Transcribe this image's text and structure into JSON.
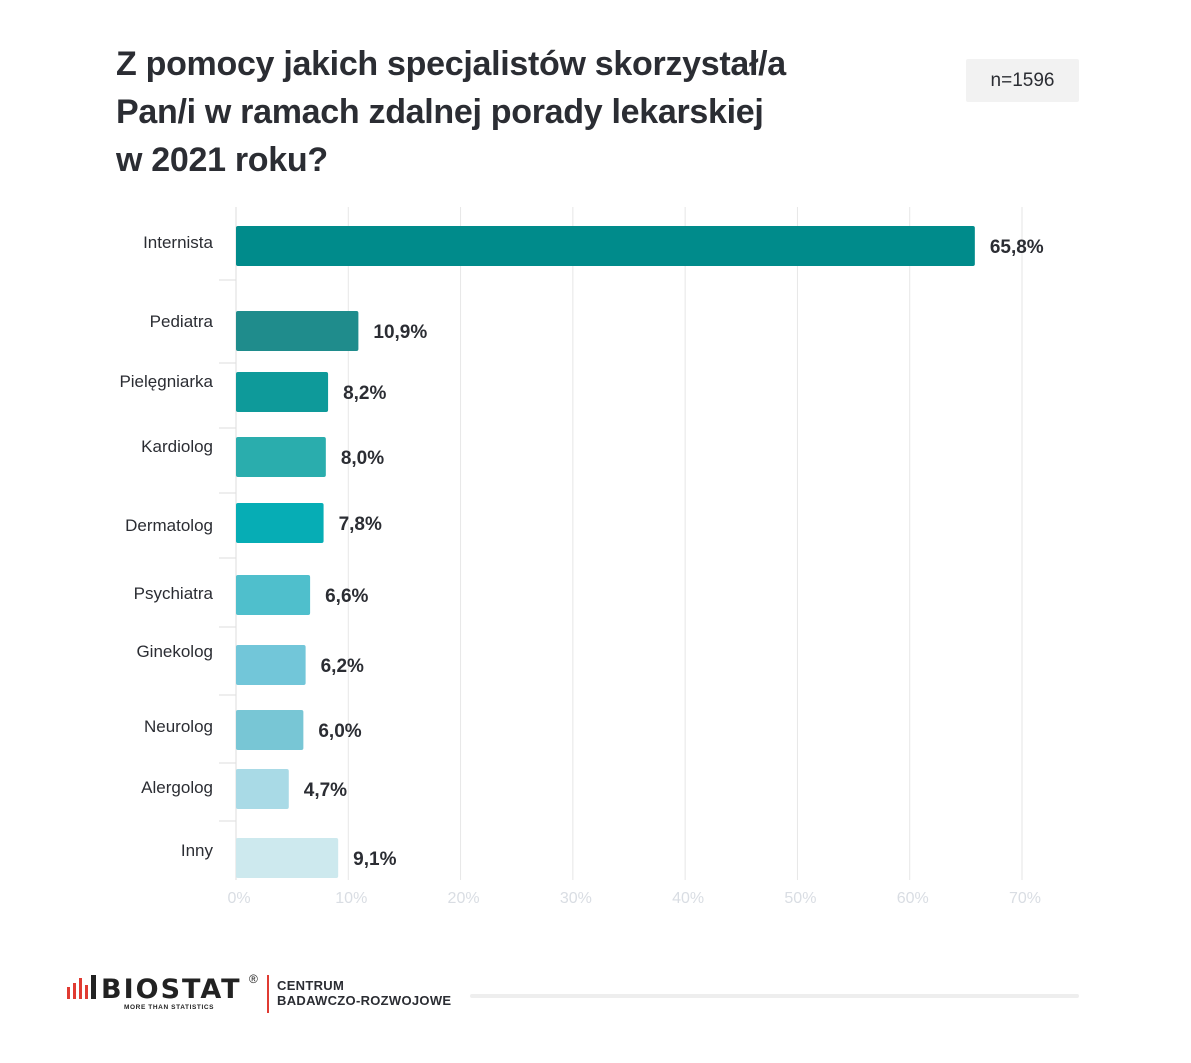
{
  "header": {
    "title_lines": [
      "Z pomocy jakich specjalistów skorzystał/a",
      "Pan/i w ramach zdalnej porady lekarskiej",
      "w 2021 roku?"
    ],
    "sample_size": "n=1596"
  },
  "chart_data": {
    "type": "bar",
    "orientation": "horizontal",
    "categories": [
      "Internista",
      "Pediatra",
      "Pielęgniarka",
      "Kardiolog",
      "Dermatolog",
      "Psychiatra",
      "Ginekolog",
      "Neurolog",
      "Alergolog",
      "Inny"
    ],
    "values": [
      65.8,
      10.9,
      8.2,
      8.0,
      7.8,
      6.6,
      6.2,
      6.0,
      4.7,
      9.1
    ],
    "value_labels": [
      "65,8%",
      "10,9%",
      "8,2%",
      "8,0%",
      "7,8%",
      "6,6%",
      "6,2%",
      "6,0%",
      "4,7%",
      "9,1%"
    ],
    "bar_colors": [
      "#008b8b",
      "#1f8c8c",
      "#0e9a9a",
      "#2aadad",
      "#06adb5",
      "#4fbfcc",
      "#72c6d9",
      "#78c6d5",
      "#a9dae6",
      "#cde9ee"
    ],
    "xlim": [
      0,
      70
    ],
    "xticks": [
      "0%",
      "10%",
      "20%",
      "30%",
      "40%",
      "50%",
      "60%",
      "70%"
    ],
    "grid": true,
    "xlabel": "",
    "ylabel": ""
  },
  "footer": {
    "brand": "BIOSTAT",
    "registered": "®",
    "tagline": "MORE THAN STATISTICS",
    "center_lines": [
      "CENTRUM",
      "BADAWCZO-ROZWOJOWE"
    ],
    "accent_color": "#e03b32"
  }
}
